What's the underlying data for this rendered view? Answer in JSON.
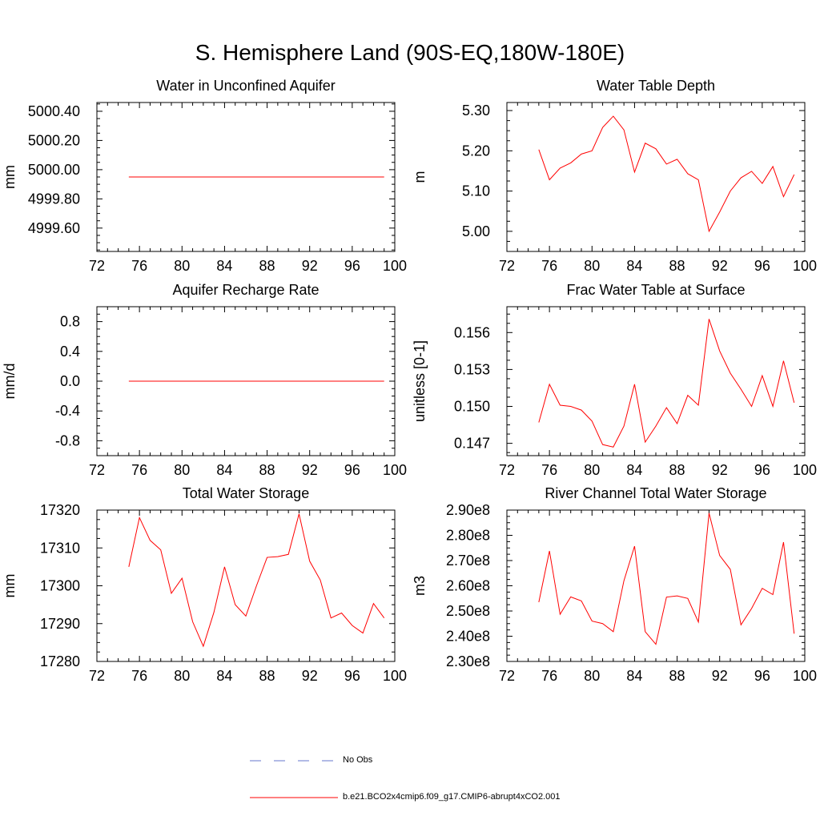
{
  "page_title": "S. Hemisphere Land (90S-EQ,180W-180E)",
  "colors": {
    "model": "#ff0000",
    "obs": "#6677cc",
    "axis": "#000000"
  },
  "legend": {
    "obs_label": "No Obs",
    "model_label": "b.e21.BCO2x4cmip6.f09_g17.CMIP6-abrupt4xCO2.001"
  },
  "chart_data": [
    {
      "id": "aquifer",
      "type": "line",
      "title": "Water in Unconfined Aquifer",
      "ylabel": "mm",
      "xlim": [
        72,
        100
      ],
      "ylim": [
        4999.44,
        5000.46
      ],
      "xticks": [
        72,
        76,
        80,
        84,
        88,
        92,
        96,
        100
      ],
      "yticks": [
        4999.6,
        4999.8,
        5000.0,
        5000.2,
        5000.4
      ],
      "ytick_labels": [
        "4999.60",
        "4999.80",
        "5000.00",
        "5000.20",
        "5000.40"
      ],
      "x": [
        75,
        76,
        77,
        78,
        79,
        80,
        81,
        82,
        83,
        84,
        85,
        86,
        87,
        88,
        89,
        90,
        91,
        92,
        93,
        94,
        95,
        96,
        97,
        98,
        99
      ],
      "series": [
        {
          "name": "b.e21.BCO2x4cmip6.f09_g17.CMIP6-abrupt4xCO2.001",
          "values": [
            4999.95,
            4999.95,
            4999.95,
            4999.95,
            4999.95,
            4999.95,
            4999.95,
            4999.95,
            4999.95,
            4999.95,
            4999.95,
            4999.95,
            4999.95,
            4999.95,
            4999.95,
            4999.95,
            4999.95,
            4999.95,
            4999.95,
            4999.95,
            4999.95,
            4999.95,
            4999.95,
            4999.95,
            4999.95
          ]
        }
      ]
    },
    {
      "id": "wtd",
      "type": "line",
      "title": "Water Table Depth",
      "ylabel": "m",
      "xlim": [
        72,
        100
      ],
      "ylim": [
        4.95,
        5.32
      ],
      "xticks": [
        72,
        76,
        80,
        84,
        88,
        92,
        96,
        100
      ],
      "yticks": [
        5.0,
        5.1,
        5.2,
        5.3
      ],
      "ytick_labels": [
        "5.00",
        "5.10",
        "5.20",
        "5.30"
      ],
      "x": [
        75,
        76,
        77,
        78,
        79,
        80,
        81,
        82,
        83,
        84,
        85,
        86,
        87,
        88,
        89,
        90,
        91,
        92,
        93,
        94,
        95,
        96,
        97,
        98,
        99
      ],
      "series": [
        {
          "name": "b.e21.BCO2x4cmip6.f09_g17.CMIP6-abrupt4xCO2.001",
          "values": [
            5.203,
            5.128,
            5.157,
            5.17,
            5.192,
            5.2,
            5.258,
            5.286,
            5.252,
            5.147,
            5.219,
            5.205,
            5.167,
            5.179,
            5.143,
            5.128,
            5.0,
            5.048,
            5.1,
            5.133,
            5.149,
            5.119,
            5.161,
            5.086,
            5.141
          ]
        }
      ]
    },
    {
      "id": "recharge",
      "type": "line",
      "title": "Aquifer Recharge Rate",
      "ylabel": "mm/d",
      "xlim": [
        72,
        100
      ],
      "ylim": [
        -1.0,
        1.0
      ],
      "xticks": [
        72,
        76,
        80,
        84,
        88,
        92,
        96,
        100
      ],
      "yticks": [
        -0.8,
        -0.4,
        0.0,
        0.4,
        0.8
      ],
      "ytick_labels": [
        "-0.8",
        "-0.4",
        "0.0",
        "0.4",
        "0.8"
      ],
      "x": [
        75,
        76,
        77,
        78,
        79,
        80,
        81,
        82,
        83,
        84,
        85,
        86,
        87,
        88,
        89,
        90,
        91,
        92,
        93,
        94,
        95,
        96,
        97,
        98,
        99
      ],
      "series": [
        {
          "name": "b.e21.BCO2x4cmip6.f09_g17.CMIP6-abrupt4xCO2.001",
          "values": [
            0,
            0,
            0,
            0,
            0,
            0,
            0,
            0,
            0,
            0,
            0,
            0,
            0,
            0,
            0,
            0,
            0,
            0,
            0,
            0,
            0,
            0,
            0,
            0,
            0
          ]
        }
      ]
    },
    {
      "id": "fwts",
      "type": "line",
      "title": "Frac Water Table at Surface",
      "ylabel": "unitless [0-1]",
      "xlim": [
        72,
        100
      ],
      "ylim": [
        0.146,
        0.1581
      ],
      "xticks": [
        72,
        76,
        80,
        84,
        88,
        92,
        96,
        100
      ],
      "yticks": [
        0.147,
        0.15,
        0.153,
        0.156
      ],
      "ytick_labels": [
        "0.147",
        "0.150",
        "0.153",
        "0.156"
      ],
      "x": [
        75,
        76,
        77,
        78,
        79,
        80,
        81,
        82,
        83,
        84,
        85,
        86,
        87,
        88,
        89,
        90,
        91,
        92,
        93,
        94,
        95,
        96,
        97,
        98,
        99
      ],
      "series": [
        {
          "name": "b.e21.BCO2x4cmip6.f09_g17.CMIP6-abrupt4xCO2.001",
          "values": [
            0.1487,
            0.1518,
            0.1501,
            0.15,
            0.1497,
            0.1488,
            0.1469,
            0.1467,
            0.1484,
            0.1518,
            0.1471,
            0.1484,
            0.1499,
            0.1486,
            0.1509,
            0.1501,
            0.1571,
            0.1545,
            0.1527,
            0.1514,
            0.15,
            0.1525,
            0.15,
            0.1537,
            0.1503
          ]
        }
      ]
    },
    {
      "id": "tws",
      "type": "line",
      "title": "Total Water Storage",
      "ylabel": "mm",
      "xlim": [
        72,
        100
      ],
      "ylim": [
        17280,
        17320
      ],
      "xticks": [
        72,
        76,
        80,
        84,
        88,
        92,
        96,
        100
      ],
      "yticks": [
        17280,
        17290,
        17300,
        17310,
        17320
      ],
      "ytick_labels": [
        "17280",
        "17290",
        "17300",
        "17310",
        "17320"
      ],
      "x": [
        75,
        76,
        77,
        78,
        79,
        80,
        81,
        82,
        83,
        84,
        85,
        86,
        87,
        88,
        89,
        90,
        91,
        92,
        93,
        94,
        95,
        96,
        97,
        98,
        99
      ],
      "series": [
        {
          "name": "b.e21.BCO2x4cmip6.f09_g17.CMIP6-abrupt4xCO2.001",
          "values": [
            17305,
            17318,
            17312,
            17309.5,
            17298,
            17302,
            17290.5,
            17284,
            17293,
            17305,
            17295,
            17292,
            17300,
            17307.5,
            17307.7,
            17308.3,
            17319,
            17306.5,
            17301.5,
            17291.5,
            17292.8,
            17289.5,
            17287.5,
            17295.3,
            17291.5
          ]
        }
      ]
    },
    {
      "id": "river",
      "type": "line",
      "title": "River Channel Total Water Storage",
      "ylabel": "m3",
      "xlim": [
        72,
        100
      ],
      "ylim": [
        2.3,
        2.9
      ],
      "xticks": [
        72,
        76,
        80,
        84,
        88,
        92,
        96,
        100
      ],
      "yticks": [
        2.3,
        2.4,
        2.5,
        2.6,
        2.7,
        2.8,
        2.9
      ],
      "ytick_labels": [
        "2.30e8",
        "2.40e8",
        "2.50e8",
        "2.60e8",
        "2.70e8",
        "2.80e8",
        "2.90e8"
      ],
      "x": [
        75,
        76,
        77,
        78,
        79,
        80,
        81,
        82,
        83,
        84,
        85,
        86,
        87,
        88,
        89,
        90,
        91,
        92,
        93,
        94,
        95,
        96,
        97,
        98,
        99
      ],
      "series": [
        {
          "name": "b.e21.BCO2x4cmip6.f09_g17.CMIP6-abrupt4xCO2.001",
          "values": [
            2.535,
            2.738,
            2.487,
            2.556,
            2.54,
            2.46,
            2.45,
            2.418,
            2.62,
            2.757,
            2.418,
            2.368,
            2.555,
            2.56,
            2.55,
            2.456,
            2.888,
            2.72,
            2.665,
            2.445,
            2.51,
            2.59,
            2.565,
            2.773,
            2.41
          ]
        }
      ]
    }
  ]
}
